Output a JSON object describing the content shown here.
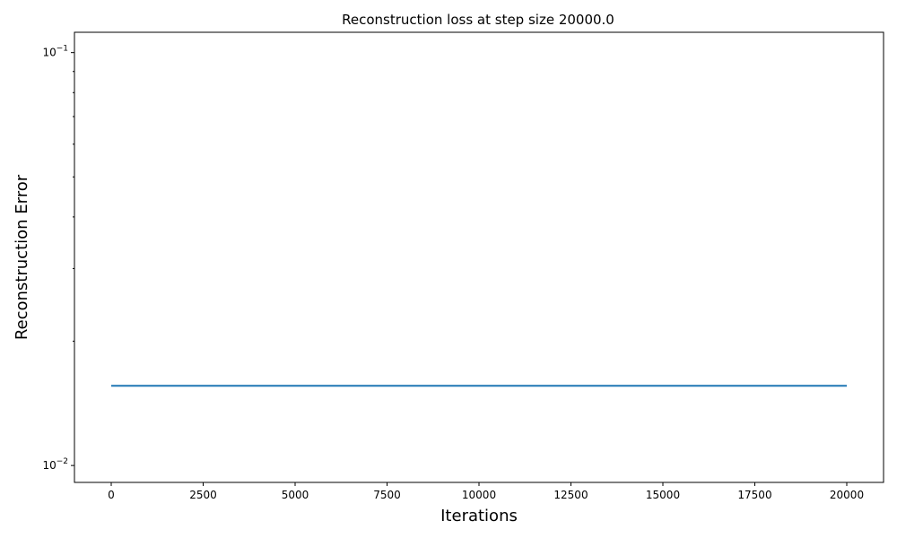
{
  "chart_data": {
    "type": "line",
    "title": "Reconstruction loss at step size 20000.0",
    "xlabel": "Iterations",
    "ylabel": "Reconstruction Error",
    "yscale": "log",
    "xlim": [
      -1000,
      21000
    ],
    "ylim": [
      0.0091,
      0.112
    ],
    "grid": false,
    "x_ticks": [
      0,
      2500,
      5000,
      7500,
      10000,
      12500,
      15000,
      17500,
      20000
    ],
    "x_tick_labels": [
      "0",
      "2500",
      "5000",
      "7500",
      "10000",
      "12500",
      "15000",
      "17500",
      "20000"
    ],
    "y_major_ticks": [
      {
        "value": 0.1,
        "base": "10",
        "exponent": "−1"
      },
      {
        "value": 0.01,
        "base": "10",
        "exponent": "−2"
      }
    ],
    "y_minor_ticks": [
      0.02,
      0.03,
      0.04,
      0.05,
      0.06,
      0.07,
      0.08,
      0.09
    ],
    "series": [
      {
        "color": "#1f77b4",
        "x": [
          0,
          2500,
          5000,
          7500,
          10000,
          12500,
          15000,
          17500,
          20000
        ],
        "y": [
          0.0156,
          0.0156,
          0.0156,
          0.0156,
          0.0156,
          0.0156,
          0.0156,
          0.0156,
          0.0156
        ]
      }
    ]
  }
}
